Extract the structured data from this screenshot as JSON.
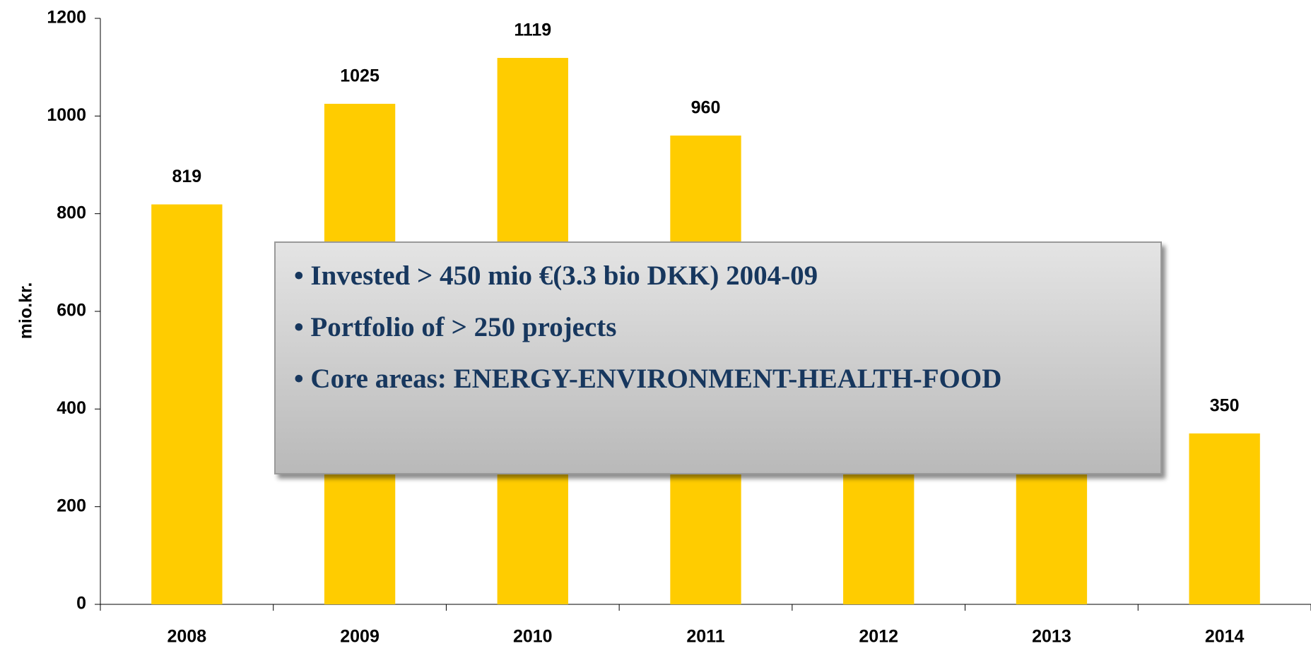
{
  "chart_data": {
    "type": "bar",
    "y_label": "mio.kr.",
    "categories": [
      "2008",
      "2009",
      "2010",
      "2011",
      "2012",
      "2013",
      "2014"
    ],
    "values": [
      819,
      1025,
      1119,
      960,
      650,
      550,
      350
    ],
    "color": "#ffcc00",
    "ylim": [
      0,
      1200
    ],
    "yticks": [
      0,
      200,
      400,
      600,
      800,
      1000,
      1200
    ],
    "annotations": [
      "• Invested  > 450 mio €(3.3 bio DKK) 2004-09",
      "• Portfolio of  > 250 projects",
      "• Core areas:  ENERGY-ENVIRONMENT-HEALTH-FOOD"
    ]
  }
}
